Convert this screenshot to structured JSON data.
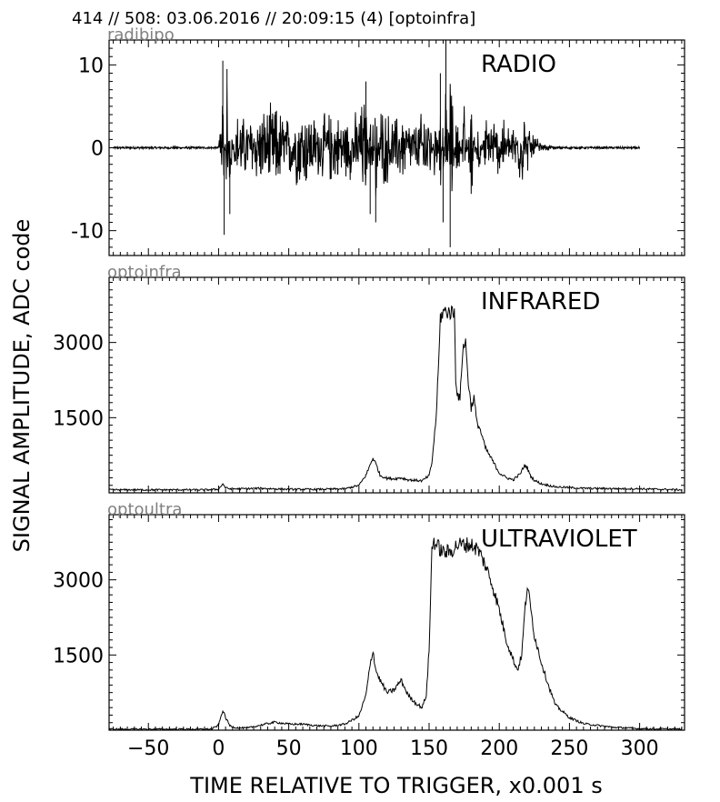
{
  "header": "414 // 508:   03.06.2016 // 20:09:15 (4)  [optoinfra]",
  "ylabel": "SIGNAL AMPLITUDE,  ADC code",
  "xlabel": "TIME RELATIVE TO TRIGGER,   x0.001 s",
  "chart_data": [
    {
      "type": "line",
      "channel": "radibipo",
      "label": "RADIO",
      "xlim": [
        -78,
        332
      ],
      "ylim": [
        -13,
        13
      ],
      "xticks": [
        -50,
        0,
        50,
        100,
        150,
        200,
        250,
        300
      ],
      "yticks": [
        -10,
        0,
        10
      ],
      "yticklabels": [
        "-10",
        "0",
        "10"
      ],
      "line_color": "#000000",
      "series": [
        {
          "x": [
            -75,
            0,
            1,
            2,
            3,
            4,
            6,
            8,
            12,
            20,
            30,
            40,
            50,
            60,
            70,
            80,
            90,
            100,
            105,
            108,
            110,
            112,
            115,
            120,
            125,
            130,
            140,
            150,
            155,
            158,
            160,
            162,
            165,
            170,
            175,
            180,
            185,
            190,
            200,
            210,
            218,
            219,
            220,
            225,
            230,
            250,
            280,
            300
          ],
          "y": [
            0,
            0,
            7,
            -7,
            10.5,
            -10.5,
            9.5,
            -8,
            5,
            4,
            5,
            6,
            4,
            6,
            4,
            5,
            4,
            5,
            8,
            -8,
            7,
            -9,
            6,
            5,
            4,
            5,
            3,
            7,
            -7,
            9,
            -9,
            13,
            -12,
            6,
            -6,
            7,
            -5,
            4,
            4,
            3,
            6,
            -5,
            3,
            2,
            0.5,
            0,
            0,
            0
          ]
        }
      ]
    },
    {
      "type": "line",
      "channel": "optoinfra",
      "label": "INFRARED",
      "xlim": [
        -78,
        332
      ],
      "ylim": [
        0,
        4300
      ],
      "xticks": [
        -50,
        0,
        50,
        100,
        150,
        200,
        250,
        300
      ],
      "yticks": [
        1500,
        3000
      ],
      "yticklabels": [
        "1500",
        "3000"
      ],
      "line_color": "#000000",
      "series": [
        {
          "x": [
            -78,
            -40,
            -10,
            0,
            3,
            5,
            8,
            15,
            30,
            50,
            70,
            90,
            100,
            105,
            108,
            110,
            113,
            115,
            120,
            125,
            130,
            135,
            140,
            145,
            150,
            152,
            155,
            157,
            158,
            160,
            161,
            162,
            164,
            166,
            168,
            169,
            170,
            172,
            174,
            176,
            178,
            180,
            182,
            184,
            186,
            190,
            195,
            200,
            205,
            210,
            215,
            218,
            220,
            222,
            225,
            230,
            240,
            260,
            300,
            330
          ],
          "y": [
            60,
            60,
            60,
            70,
            180,
            100,
            80,
            80,
            90,
            70,
            70,
            80,
            150,
            350,
            560,
            700,
            520,
            350,
            290,
            280,
            300,
            260,
            250,
            240,
            340,
            600,
            1500,
            2700,
            3500,
            3600,
            3620,
            3620,
            3610,
            3600,
            3600,
            2300,
            2000,
            1850,
            2900,
            3000,
            2200,
            1700,
            1900,
            1400,
            1300,
            900,
            650,
            400,
            300,
            260,
            380,
            550,
            500,
            350,
            250,
            180,
            120,
            90,
            80,
            60
          ]
        }
      ]
    },
    {
      "type": "line",
      "channel": "optoultra",
      "label": "ULTRAVIOLET",
      "xlim": [
        -78,
        332
      ],
      "ylim": [
        0,
        4300
      ],
      "xticks": [
        -50,
        0,
        50,
        100,
        150,
        200,
        250,
        300
      ],
      "yticks": [
        1500,
        3000
      ],
      "yticklabels": [
        "1500",
        "3000"
      ],
      "line_color": "#000000",
      "series": [
        {
          "x": [
            -78,
            -20,
            -5,
            0,
            3,
            5,
            8,
            12,
            20,
            30,
            40,
            50,
            60,
            70,
            80,
            90,
            100,
            105,
            108,
            110,
            112,
            115,
            120,
            125,
            130,
            135,
            140,
            145,
            148,
            150,
            152,
            153,
            155,
            160,
            165,
            170,
            175,
            180,
            185,
            190,
            195,
            200,
            205,
            210,
            213,
            216,
            218,
            220,
            222,
            225,
            230,
            235,
            240,
            250,
            260,
            280,
            300,
            330
          ],
          "y": [
            20,
            20,
            20,
            100,
            400,
            250,
            90,
            50,
            40,
            100,
            160,
            120,
            120,
            90,
            80,
            120,
            280,
            700,
            1300,
            1600,
            1200,
            1000,
            750,
            800,
            1000,
            700,
            550,
            450,
            700,
            1600,
            3600,
            3800,
            3700,
            3550,
            3550,
            3700,
            3700,
            3700,
            3600,
            3300,
            2900,
            2400,
            1800,
            1400,
            1200,
            1500,
            2300,
            2900,
            2500,
            1900,
            1350,
            900,
            500,
            250,
            130,
            60,
            30,
            20
          ]
        }
      ]
    }
  ]
}
